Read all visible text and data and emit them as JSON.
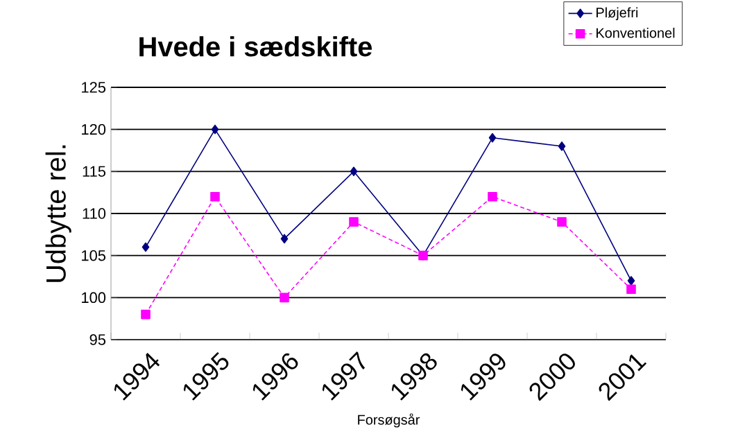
{
  "chart_data": {
    "type": "line",
    "title": "Hvede i sædskifte",
    "xlabel": "Forsøgsår",
    "ylabel": "Udbytte rel.",
    "categories": [
      "1994",
      "1995",
      "1996",
      "1997",
      "1998",
      "1999",
      "2000",
      "2001"
    ],
    "series": [
      {
        "name": "Pløjefri",
        "color": "#000080",
        "marker": "diamond",
        "line_style": "solid",
        "values": [
          106,
          120,
          107,
          115,
          105,
          119,
          118,
          102
        ]
      },
      {
        "name": "Konventionel",
        "color": "#ff00ff",
        "marker": "square",
        "line_style": "dotted",
        "values": [
          98,
          112,
          100,
          109,
          105,
          112,
          109,
          101
        ]
      }
    ],
    "ylim": [
      95,
      125
    ],
    "yticks": [
      95,
      100,
      105,
      110,
      115,
      120,
      125
    ],
    "grid": "y",
    "legend": "top right"
  }
}
